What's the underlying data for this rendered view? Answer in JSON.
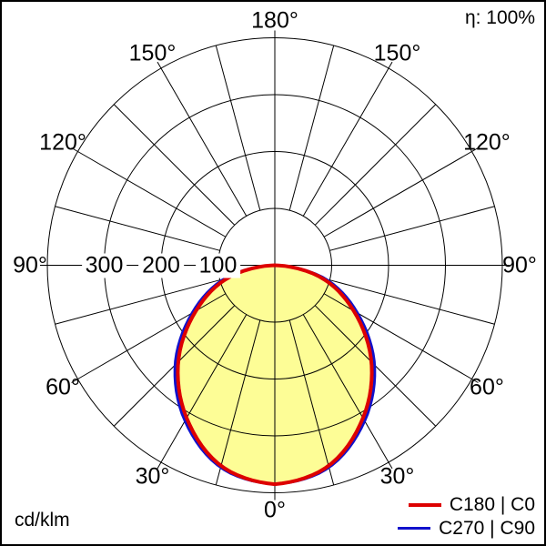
{
  "header": {
    "efficiency": "η: 100%"
  },
  "footer": {
    "unit": "cd/klm"
  },
  "chart_data": {
    "type": "polar_intensity_distribution",
    "unit": "cd/klm",
    "efficiency": "η: 100%",
    "fill_color": "#fdfd96",
    "grid_color": "#000000",
    "radial_axis_max": 400,
    "radial_tick_step": 100,
    "angle_grid_step_deg": 15,
    "angles_deg": [
      0,
      15,
      30,
      45,
      60,
      75,
      90
    ],
    "series": [
      {
        "name": "C180 | C0",
        "color": "#dd0000",
        "values": [
          385,
          365,
          310,
          240,
          160,
          85,
          0
        ]
      },
      {
        "name": "C270 | C90",
        "color": "#1111cc",
        "values": [
          385,
          368,
          316,
          248,
          168,
          92,
          0
        ]
      }
    ],
    "radial_tick_labels": [
      {
        "value": 300,
        "text": "300"
      },
      {
        "value": 200,
        "text": "200"
      },
      {
        "value": 100,
        "text": "100"
      }
    ],
    "angle_labels": [
      {
        "s": 180,
        "text": "180°"
      },
      {
        "s": -150,
        "text": "150°"
      },
      {
        "s": 150,
        "text": "150°"
      },
      {
        "s": -120,
        "text": "120°"
      },
      {
        "s": 120,
        "text": "120°"
      },
      {
        "s": -90,
        "text": "90°"
      },
      {
        "s": 90,
        "text": "90°"
      },
      {
        "s": -60,
        "text": "60°"
      },
      {
        "s": 60,
        "text": "60°"
      },
      {
        "s": -30,
        "text": "30°"
      },
      {
        "s": 30,
        "text": "30°"
      },
      {
        "s": 0,
        "text": "0°"
      }
    ]
  }
}
